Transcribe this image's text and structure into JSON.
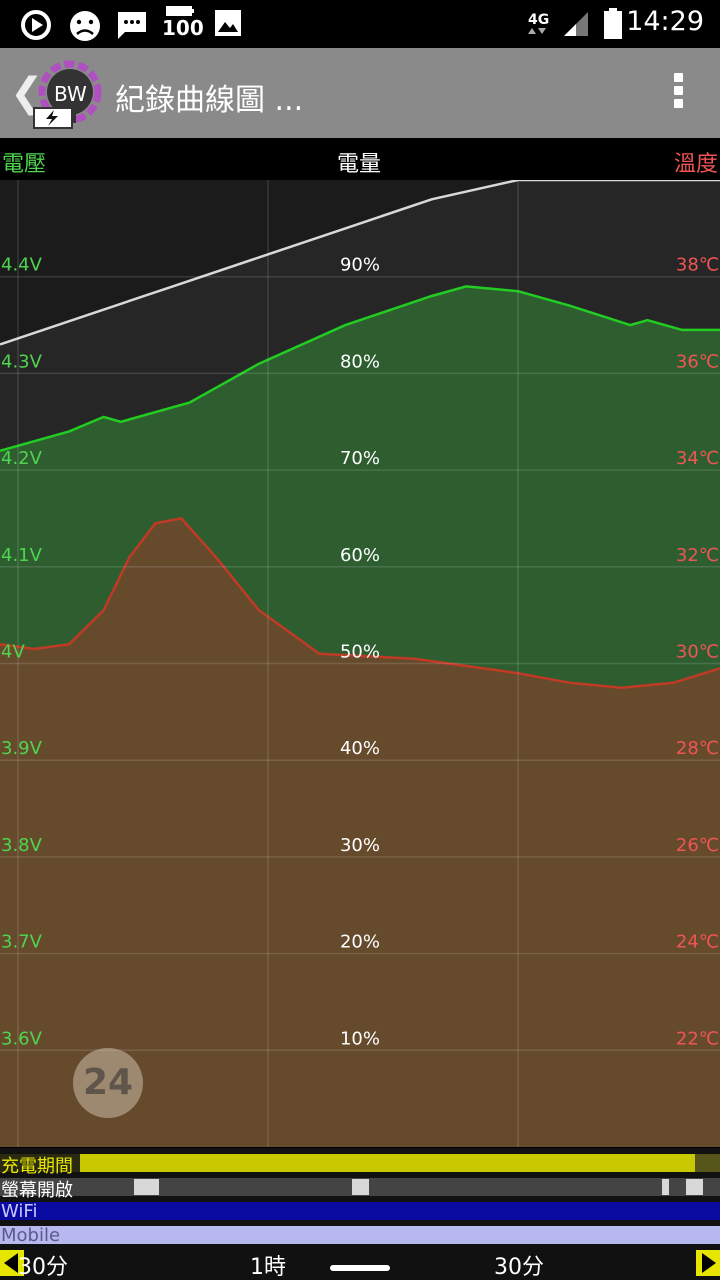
{
  "status_bar": {
    "time": "14:29",
    "battery_percent": "100",
    "network": "4G",
    "icons": [
      "play-circle-icon",
      "sad-face-icon",
      "message-icon",
      "battery-100-icon",
      "image-icon",
      "signal-icon",
      "battery-full-icon"
    ]
  },
  "app_bar": {
    "back_glyph": "❮",
    "logo_text": "BW",
    "title": "紀錄曲線圖 ..."
  },
  "chart_header": {
    "voltage_label": "電壓",
    "battery_label": "電量",
    "temperature_label": "溫度"
  },
  "chart_data": {
    "type": "area",
    "voltage_ticks": [
      "4.4V",
      "4.3V",
      "4.2V",
      "4.1V",
      "4V",
      "3.9V",
      "3.8V",
      "3.7V",
      "3.6V"
    ],
    "battery_ticks": [
      "90%",
      "80%",
      "70%",
      "60%",
      "50%",
      "40%",
      "30%",
      "20%",
      "10%"
    ],
    "temperature_ticks": [
      "38℃",
      "36℃",
      "34℃",
      "32℃",
      "30℃",
      "28℃",
      "26℃",
      "24℃",
      "22℃"
    ],
    "battery_ylim": [
      0,
      100
    ],
    "voltage_ylim": [
      3.5,
      4.5
    ],
    "temperature_ylim": [
      20,
      40
    ],
    "x_ticks": [
      "30分",
      "1時",
      "30分"
    ],
    "series": [
      {
        "name": "電量",
        "color": "#d8d8d8",
        "fill": "#262626",
        "points": [
          [
            0,
            83
          ],
          [
            50,
            86
          ],
          [
            100,
            89
          ],
          [
            150,
            92
          ],
          [
            200,
            95
          ],
          [
            250,
            98
          ],
          [
            300,
            100
          ],
          [
            350,
            100
          ],
          [
            400,
            100
          ],
          [
            417,
            100
          ]
        ]
      },
      {
        "name": "電壓",
        "color": "#22cc22",
        "fill": "#2e5e30",
        "points": [
          [
            0,
            4.22
          ],
          [
            40,
            4.24
          ],
          [
            60,
            4.255
          ],
          [
            70,
            4.25
          ],
          [
            110,
            4.27
          ],
          [
            120,
            4.28
          ],
          [
            150,
            4.31
          ],
          [
            200,
            4.35
          ],
          [
            250,
            4.38
          ],
          [
            270,
            4.39
          ],
          [
            300,
            4.385
          ],
          [
            330,
            4.37
          ],
          [
            365,
            4.35
          ],
          [
            375,
            4.355
          ],
          [
            385,
            4.35
          ],
          [
            395,
            4.345
          ],
          [
            417,
            4.345
          ]
        ]
      },
      {
        "name": "溫度",
        "color": "#c03a25",
        "fill": "#664a2c",
        "points": [
          [
            0,
            30.4
          ],
          [
            20,
            30.3
          ],
          [
            40,
            30.4
          ],
          [
            60,
            31.1
          ],
          [
            75,
            32.2
          ],
          [
            90,
            32.9
          ],
          [
            105,
            33.0
          ],
          [
            125,
            32.2
          ],
          [
            150,
            31.1
          ],
          [
            185,
            30.2
          ],
          [
            240,
            30.1
          ],
          [
            300,
            29.8
          ],
          [
            330,
            29.6
          ],
          [
            360,
            29.5
          ],
          [
            390,
            29.6
          ],
          [
            417,
            29.9
          ]
        ]
      }
    ],
    "grid": true
  },
  "timeline": {
    "charging_label": "充電期間",
    "screen_label": "螢幕開啟",
    "wifi_label": "WiFi",
    "mobile_label": "Mobile",
    "charging_color": "#c8c800",
    "wifi_color": "#0a0aa0",
    "mobile_color": "#b8b8f0"
  },
  "time_axis": {
    "tick_left": "30分",
    "tick_mid": "1時",
    "tick_right": "30分"
  },
  "badge": {
    "value": "24"
  }
}
